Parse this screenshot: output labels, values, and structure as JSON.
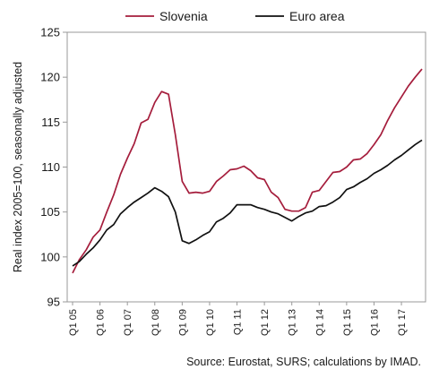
{
  "chart_data": {
    "type": "line",
    "title": "",
    "xlabel": "",
    "ylabel": "Real index 2005=100, seasonally adjusted",
    "ylim": [
      95,
      125
    ],
    "yticks": [
      95,
      100,
      105,
      110,
      115,
      120,
      125
    ],
    "xticks": [
      "Q1 05",
      "Q1 06",
      "Q1 07",
      "Q1 08",
      "Q1 09",
      "Q1 10",
      "Q1 11",
      "Q1 12",
      "Q1 13",
      "Q1 14",
      "Q1 15",
      "Q1 16",
      "Q1 17"
    ],
    "grid": false,
    "legend_position": "top",
    "x": [
      "Q1 05",
      "Q2 05",
      "Q3 05",
      "Q4 05",
      "Q1 06",
      "Q2 06",
      "Q3 06",
      "Q4 06",
      "Q1 07",
      "Q2 07",
      "Q3 07",
      "Q4 07",
      "Q1 08",
      "Q2 08",
      "Q3 08",
      "Q4 08",
      "Q1 09",
      "Q2 09",
      "Q3 09",
      "Q4 09",
      "Q1 10",
      "Q2 10",
      "Q3 10",
      "Q4 10",
      "Q1 11",
      "Q2 11",
      "Q3 11",
      "Q4 11",
      "Q1 12",
      "Q2 12",
      "Q3 12",
      "Q4 12",
      "Q1 13",
      "Q2 13",
      "Q3 13",
      "Q4 13",
      "Q1 14",
      "Q2 14",
      "Q3 14",
      "Q4 14",
      "Q1 15",
      "Q2 15",
      "Q3 15",
      "Q4 15",
      "Q1 16",
      "Q2 16",
      "Q3 16",
      "Q4 16",
      "Q1 17",
      "Q2 17",
      "Q3 17",
      "Q4 17"
    ],
    "series": [
      {
        "name": "Slovenia",
        "color": "#a51d3c",
        "values": [
          98.2,
          99.7,
          100.8,
          102.2,
          103.0,
          105.0,
          106.9,
          109.2,
          111.0,
          112.6,
          114.9,
          115.3,
          117.2,
          118.4,
          118.1,
          113.6,
          108.4,
          107.1,
          107.2,
          107.1,
          107.3,
          108.4,
          109.0,
          109.7,
          109.8,
          110.1,
          109.6,
          108.8,
          108.6,
          107.2,
          106.6,
          105.3,
          105.1,
          105.1,
          105.5,
          107.2,
          107.4,
          108.4,
          109.4,
          109.5,
          110.0,
          110.8,
          110.9,
          111.5,
          112.5,
          113.6,
          115.2,
          116.6,
          117.8,
          119.0,
          120.0,
          120.9
        ]
      },
      {
        "name": "Euro area",
        "color": "#111111",
        "values": [
          99.0,
          99.5,
          100.3,
          101.0,
          101.9,
          103.0,
          103.6,
          104.8,
          105.5,
          106.1,
          106.6,
          107.1,
          107.7,
          107.3,
          106.7,
          105.0,
          101.8,
          101.5,
          101.9,
          102.4,
          102.8,
          103.9,
          104.3,
          104.9,
          105.8,
          105.8,
          105.8,
          105.5,
          105.3,
          105.0,
          104.8,
          104.4,
          104.0,
          104.5,
          104.9,
          105.1,
          105.6,
          105.7,
          106.1,
          106.6,
          107.5,
          107.8,
          108.3,
          108.7,
          109.3,
          109.7,
          110.2,
          110.8,
          111.3,
          111.9,
          112.5,
          113.0
        ]
      }
    ]
  },
  "source_note": "Source: Eurostat, SURS; calculations by IMAD."
}
